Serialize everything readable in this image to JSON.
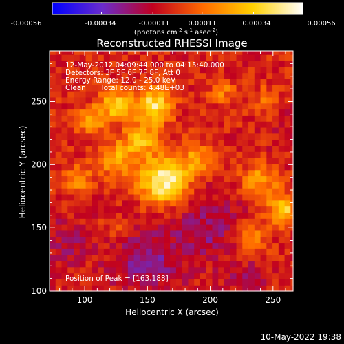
{
  "colorbar": {
    "ticks": [
      "-0.00056",
      "-0.00034",
      "-0.00011",
      "0.00011",
      "0.00034",
      "0.00056"
    ],
    "unit_label": "(photons cm",
    "unit_exp1": "-2",
    "unit_mid": " s",
    "unit_exp2": "-1",
    "unit_mid2": " asec",
    "unit_exp3": "-2",
    "unit_end": ")",
    "min": -0.00056,
    "max": 0.00056
  },
  "chart_data": {
    "type": "heatmap",
    "title": "Reconstructed RHESSI Image",
    "xlabel": "Heliocentric X (arcsec)",
    "ylabel": "Heliocentric Y (arcsec)",
    "xlim": [
      72,
      266
    ],
    "ylim": [
      100,
      290
    ],
    "x_ticks": [
      "100",
      "150",
      "200",
      "250"
    ],
    "y_ticks": [
      "100",
      "150",
      "200",
      "250"
    ],
    "x_tick_values": [
      100,
      150,
      200,
      250
    ],
    "y_tick_values": [
      100,
      150,
      200,
      250
    ],
    "colormap": "blue-purple-red-yellow-white",
    "colormap_stops": [
      "#0000ff",
      "#6a2ccc",
      "#c00020",
      "#ff6a00",
      "#ffd000",
      "#ffffff"
    ],
    "peak_position": [
      163,
      188
    ],
    "sources": [
      {
        "x": 163,
        "y": 188,
        "amp": 0.00056,
        "sigma": 13
      },
      {
        "x": 155,
        "y": 247,
        "amp": 0.00046,
        "sigma": 10
      },
      {
        "x": 125,
        "y": 248,
        "amp": 0.00036,
        "sigma": 9
      },
      {
        "x": 105,
        "y": 235,
        "amp": 0.00028,
        "sigma": 8
      },
      {
        "x": 125,
        "y": 205,
        "amp": 0.0003,
        "sigma": 10
      },
      {
        "x": 145,
        "y": 220,
        "amp": 0.00032,
        "sigma": 9
      },
      {
        "x": 190,
        "y": 205,
        "amp": 0.00024,
        "sigma": 9
      },
      {
        "x": 95,
        "y": 190,
        "amp": 0.00022,
        "sigma": 8
      },
      {
        "x": 258,
        "y": 165,
        "amp": 0.0004,
        "sigma": 8
      },
      {
        "x": 240,
        "y": 188,
        "amp": 0.00026,
        "sigma": 10
      },
      {
        "x": 232,
        "y": 140,
        "amp": 0.00024,
        "sigma": 9
      },
      {
        "x": 210,
        "y": 258,
        "amp": 0.00018,
        "sigma": 7
      },
      {
        "x": 245,
        "y": 250,
        "amp": 0.00016,
        "sigma": 8
      },
      {
        "x": 125,
        "y": 150,
        "amp": 0.00012,
        "sigma": 7
      },
      {
        "x": 150,
        "y": 125,
        "amp": -0.0002,
        "sigma": 20
      },
      {
        "x": 200,
        "y": 150,
        "amp": -0.00016,
        "sigma": 18
      },
      {
        "x": 85,
        "y": 140,
        "amp": -0.00012,
        "sigma": 14
      },
      {
        "x": 230,
        "y": 110,
        "amp": -0.0001,
        "sigma": 14
      },
      {
        "x": 265,
        "y": 225,
        "amp": -8e-05,
        "sigma": 12
      }
    ],
    "background": -4e-05,
    "grid": false
  },
  "info": {
    "time_range": "12-May-2012 04:09:44.000 to 04:15:40.000",
    "detectors": "Detectors: 3F 5F 6F 7F 8F, Att 0",
    "energy": "Energy Range: 12.0 - 25.0 keV",
    "clean_label": "Clean",
    "total_counts": "Total counts: 4.48E+03",
    "peak_text": "Position of Peak = [163,188]"
  },
  "footer": {
    "timestamp": "10-May-2022 19:38"
  }
}
